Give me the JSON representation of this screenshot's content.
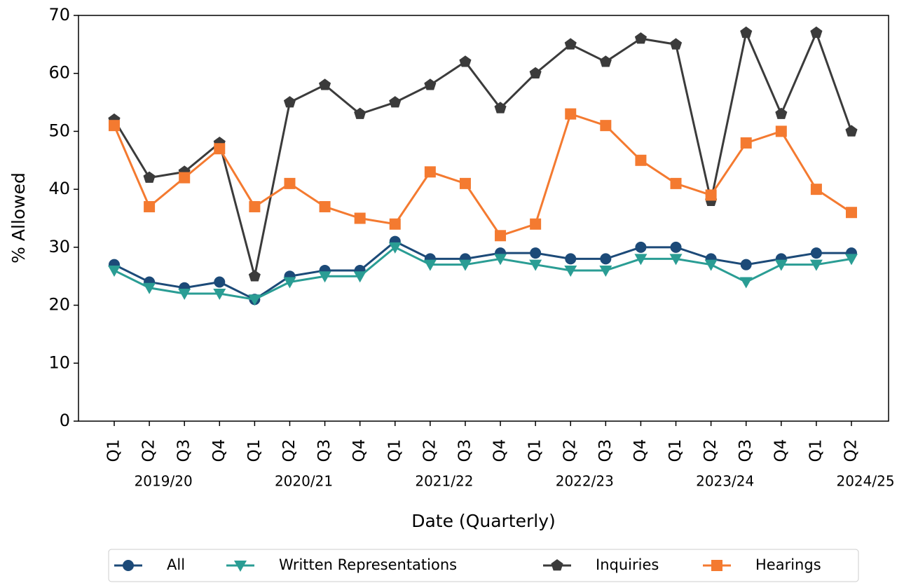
{
  "chart_data": {
    "type": "line",
    "ylabel": "% Allowed",
    "xlabel": "Date (Quarterly)",
    "categories": [
      "Q1",
      "Q2",
      "Q3",
      "Q4",
      "Q1",
      "Q2",
      "Q3",
      "Q4",
      "Q1",
      "Q2",
      "Q3",
      "Q4",
      "Q1",
      "Q2",
      "Q3",
      "Q4",
      "Q1",
      "Q2",
      "Q3",
      "Q4",
      "Q1",
      "Q2"
    ],
    "groups": [
      {
        "label": "2019/20",
        "start": 0
      },
      {
        "label": "2020/21",
        "start": 4
      },
      {
        "label": "2021/22",
        "start": 8
      },
      {
        "label": "2022/23",
        "start": 12
      },
      {
        "label": "2023/24",
        "start": 16
      },
      {
        "label": "2024/25",
        "start": 20
      }
    ],
    "ylim": [
      0,
      70
    ],
    "yticks": [
      0,
      10,
      20,
      30,
      40,
      50,
      60,
      70
    ],
    "legend": "bottom",
    "series": [
      {
        "name": "All",
        "color": "#1c4a78",
        "marker": "circle",
        "values": [
          27,
          24,
          23,
          24,
          21,
          25,
          26,
          26,
          31,
          28,
          28,
          29,
          29,
          28,
          28,
          30,
          30,
          28,
          27,
          28,
          29,
          29
        ]
      },
      {
        "name": "Written Representations",
        "color": "#2a9d94",
        "marker": "triangle-down",
        "values": [
          26,
          23,
          22,
          22,
          21,
          24,
          25,
          25,
          30,
          27,
          27,
          28,
          27,
          26,
          26,
          28,
          28,
          27,
          24,
          27,
          27,
          28
        ]
      },
      {
        "name": "Inquiries",
        "color": "#3b3b3b",
        "marker": "pentagon",
        "values": [
          52,
          42,
          43,
          48,
          25,
          55,
          58,
          53,
          55,
          58,
          62,
          54,
          60,
          65,
          62,
          66,
          65,
          38,
          67,
          53,
          67,
          50
        ]
      },
      {
        "name": "Hearings",
        "color": "#f47a30",
        "marker": "square",
        "values": [
          51,
          37,
          42,
          47,
          37,
          41,
          37,
          35,
          34,
          43,
          41,
          32,
          34,
          53,
          51,
          45,
          41,
          39,
          48,
          50,
          40,
          36
        ]
      }
    ]
  }
}
